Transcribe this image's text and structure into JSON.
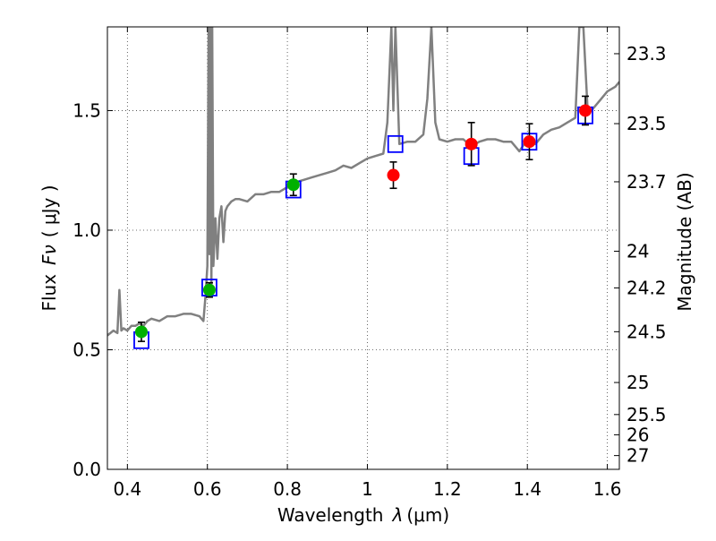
{
  "chart_data": {
    "type": "scatter",
    "xlabel": "Wavelength",
    "xlabel_symbol": "λ",
    "xlabel_unit": "(μm)",
    "ylabel": "Flux",
    "ylabel_symbol": "Fν",
    "ylabel_unit": "( μJy )",
    "ylabel_right": "Magnitude (AB)",
    "xlim": [
      0.35,
      1.63
    ],
    "ylim": [
      0.0,
      1.85
    ],
    "x_ticks": [
      0.4,
      0.6,
      0.8,
      1.0,
      1.2,
      1.4,
      1.6
    ],
    "x_tick_labels": [
      "0.4",
      "0.6",
      "0.8",
      "1",
      "1.2",
      "1.4",
      "1.6"
    ],
    "y_ticks": [
      0.0,
      0.5,
      1.0,
      1.5
    ],
    "y_tick_labels": [
      "0.0",
      "0.5",
      "1.0",
      "1.5"
    ],
    "mag_ticks": [
      23.3,
      23.5,
      23.7,
      24,
      24.2,
      24.5,
      25,
      25.5,
      26,
      27
    ],
    "mag_tick_labels": [
      "23.3",
      "23.5",
      "23.7",
      "24",
      "24.2",
      "24.5",
      "25",
      "25.5",
      "26",
      "27"
    ],
    "grid": true,
    "colors": {
      "spectrum": "#808080",
      "model_box": "#0000ff",
      "green": "#00b000",
      "red": "#ff0000",
      "error": "#000000"
    },
    "series": [
      {
        "name": "model template spectrum",
        "style": "line",
        "x": [
          0.35,
          0.365,
          0.375,
          0.38,
          0.385,
          0.39,
          0.4,
          0.41,
          0.42,
          0.43,
          0.44,
          0.45,
          0.46,
          0.48,
          0.5,
          0.52,
          0.54,
          0.56,
          0.58,
          0.59,
          0.595,
          0.6,
          0.603,
          0.605,
          0.607,
          0.61,
          0.612,
          0.615,
          0.62,
          0.625,
          0.63,
          0.635,
          0.64,
          0.645,
          0.65,
          0.66,
          0.67,
          0.68,
          0.7,
          0.72,
          0.74,
          0.76,
          0.78,
          0.8,
          0.82,
          0.84,
          0.86,
          0.88,
          0.9,
          0.92,
          0.94,
          0.96,
          0.98,
          1.0,
          1.02,
          1.04,
          1.05,
          1.06,
          1.065,
          1.07,
          1.08,
          1.1,
          1.12,
          1.14,
          1.15,
          1.16,
          1.17,
          1.18,
          1.2,
          1.22,
          1.24,
          1.26,
          1.28,
          1.3,
          1.32,
          1.34,
          1.36,
          1.38,
          1.4,
          1.42,
          1.44,
          1.46,
          1.48,
          1.5,
          1.52,
          1.53,
          1.54,
          1.55,
          1.56,
          1.58,
          1.6,
          1.62,
          1.63
        ],
        "y": [
          0.56,
          0.58,
          0.57,
          0.75,
          0.58,
          0.59,
          0.58,
          0.6,
          0.6,
          0.61,
          0.6,
          0.62,
          0.63,
          0.62,
          0.64,
          0.64,
          0.65,
          0.65,
          0.64,
          0.62,
          0.72,
          0.85,
          1.85,
          0.9,
          1.85,
          0.75,
          1.85,
          0.85,
          1.05,
          0.88,
          1.05,
          1.1,
          0.95,
          1.08,
          1.1,
          1.12,
          1.13,
          1.13,
          1.12,
          1.15,
          1.15,
          1.16,
          1.16,
          1.18,
          1.2,
          1.21,
          1.22,
          1.23,
          1.24,
          1.25,
          1.27,
          1.26,
          1.28,
          1.3,
          1.31,
          1.32,
          1.45,
          1.85,
          1.5,
          1.85,
          1.36,
          1.37,
          1.37,
          1.4,
          1.55,
          1.85,
          1.45,
          1.38,
          1.37,
          1.38,
          1.38,
          1.35,
          1.37,
          1.38,
          1.38,
          1.37,
          1.37,
          1.33,
          1.38,
          1.36,
          1.4,
          1.42,
          1.43,
          1.45,
          1.47,
          1.85,
          1.85,
          1.52,
          1.5,
          1.54,
          1.58,
          1.6,
          1.62
        ]
      },
      {
        "name": "model photometry (boxes)",
        "style": "box",
        "x": [
          0.435,
          0.605,
          0.815,
          1.07,
          1.26,
          1.405,
          1.545
        ],
        "y": [
          0.54,
          0.76,
          1.17,
          1.36,
          1.31,
          1.37,
          1.48
        ]
      },
      {
        "name": "observed photometry (green)",
        "style": "point",
        "x": [
          0.435,
          0.605,
          0.815
        ],
        "y": [
          0.575,
          0.75,
          1.19
        ],
        "yerr": [
          0.04,
          0.03,
          0.045
        ]
      },
      {
        "name": "observed photometry (red)",
        "style": "point",
        "x": [
          1.065,
          1.26,
          1.405,
          1.545
        ],
        "y": [
          1.23,
          1.36,
          1.37,
          1.5
        ],
        "yerr": [
          0.055,
          0.09,
          0.075,
          0.06
        ]
      }
    ]
  }
}
